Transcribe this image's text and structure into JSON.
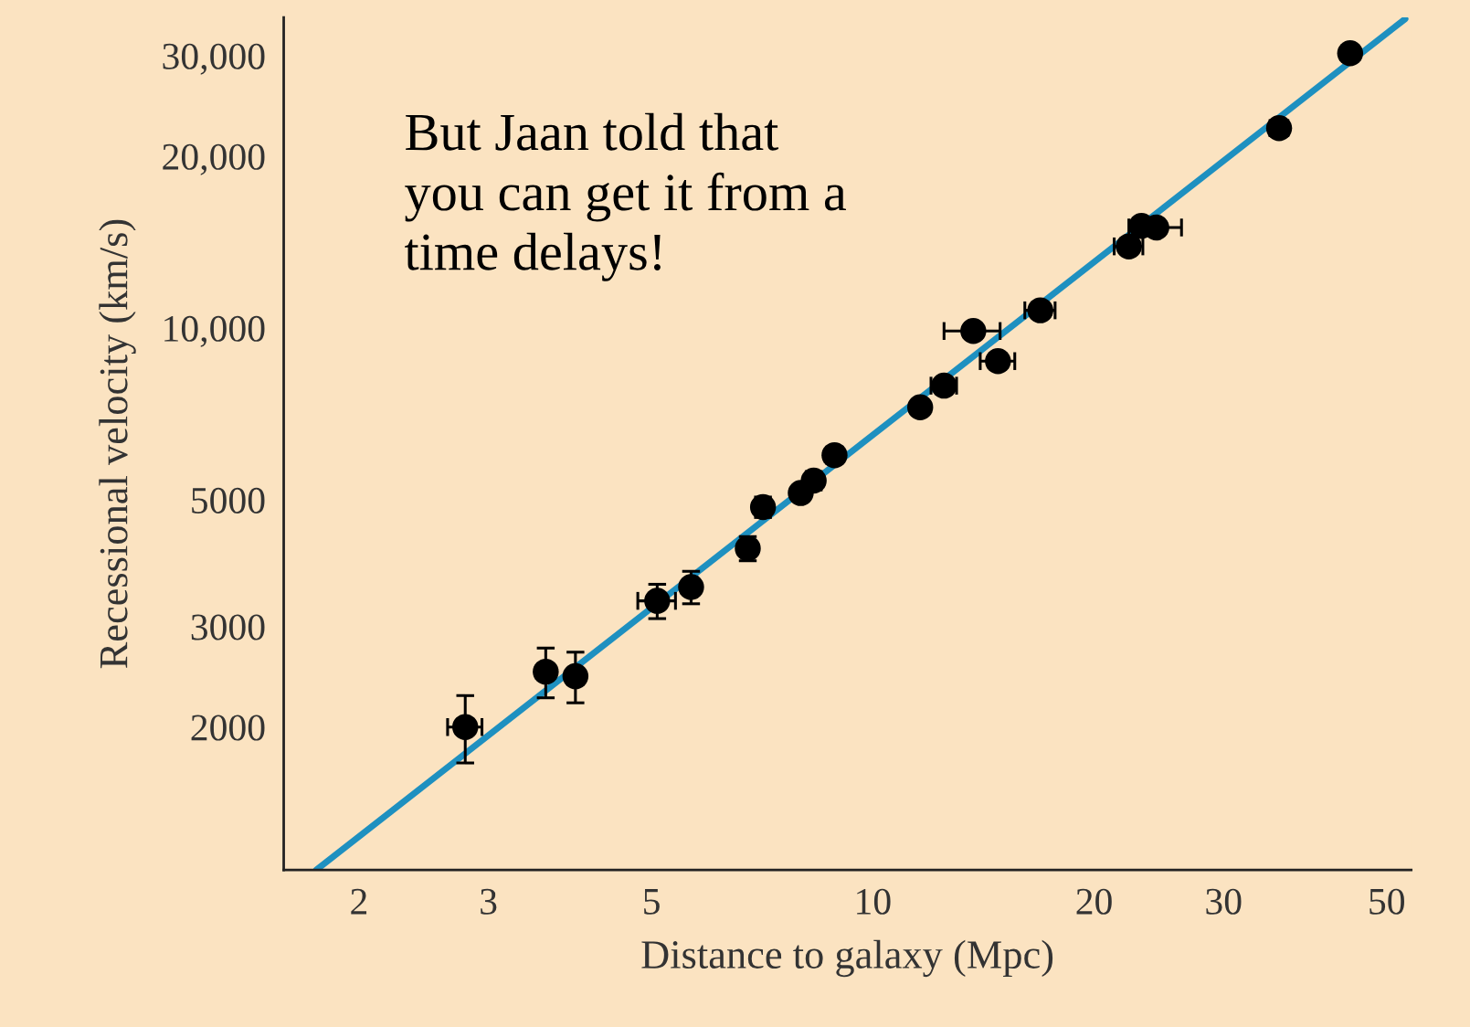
{
  "chart_data": {
    "type": "scatter",
    "xlabel": "Distance to galaxy (Mpc)",
    "ylabel": "Recessional velocity (km/s)",
    "log": "xy",
    "grid": false,
    "legend": false,
    "marker": "circle",
    "xlim": [
      1.58,
      54
    ],
    "ylim": [
      1124,
      35000
    ],
    "xticks": [
      2,
      3,
      5,
      10,
      20,
      30,
      50
    ],
    "yticks": [
      {
        "value": 2000,
        "label": "2000"
      },
      {
        "value": 3000,
        "label": "3000"
      },
      {
        "value": 5000,
        "label": "5000"
      },
      {
        "value": 10000,
        "label": "10,000"
      },
      {
        "value": 20000,
        "label": "20,000"
      },
      {
        "value": 30000,
        "label": "30,000"
      }
    ],
    "annotations": [
      "But Jaan told that\nyou can get it from a\ntime delays!"
    ],
    "series": [
      {
        "type": "line",
        "marker": "none",
        "color": "#1e90c0",
        "x": [
          1.75,
          53
        ],
        "values": [
          1124,
          34800
        ]
      },
      {
        "color": "#000000",
        "x": [
          2.79,
          3.59,
          3.94,
          5.09,
          5.66,
          6.76,
          7.09,
          7.98,
          8.31,
          8.87,
          11.6,
          12.5,
          13.7,
          14.8,
          16.9,
          22.3,
          23.2,
          24.3,
          35.7,
          44.6
        ],
        "values": [
          2000,
          2500,
          2455,
          3327,
          3518,
          4111,
          4857,
          5140,
          5404,
          5988,
          7263,
          7925,
          9880,
          8750,
          10740,
          13900,
          15100,
          15000,
          22400,
          30300
        ],
        "xerrors": [
          0.15,
          null,
          null,
          0.3,
          null,
          null,
          null,
          null,
          null,
          null,
          null,
          0.5,
          1.2,
          0.8,
          0.8,
          1.0,
          null,
          2.0,
          1.0,
          null
        ],
        "errors": [
          270,
          250,
          250,
          230,
          230,
          200,
          200,
          null,
          200,
          200,
          null,
          null,
          null,
          null,
          null,
          null,
          null,
          null,
          null,
          null
        ]
      }
    ]
  }
}
